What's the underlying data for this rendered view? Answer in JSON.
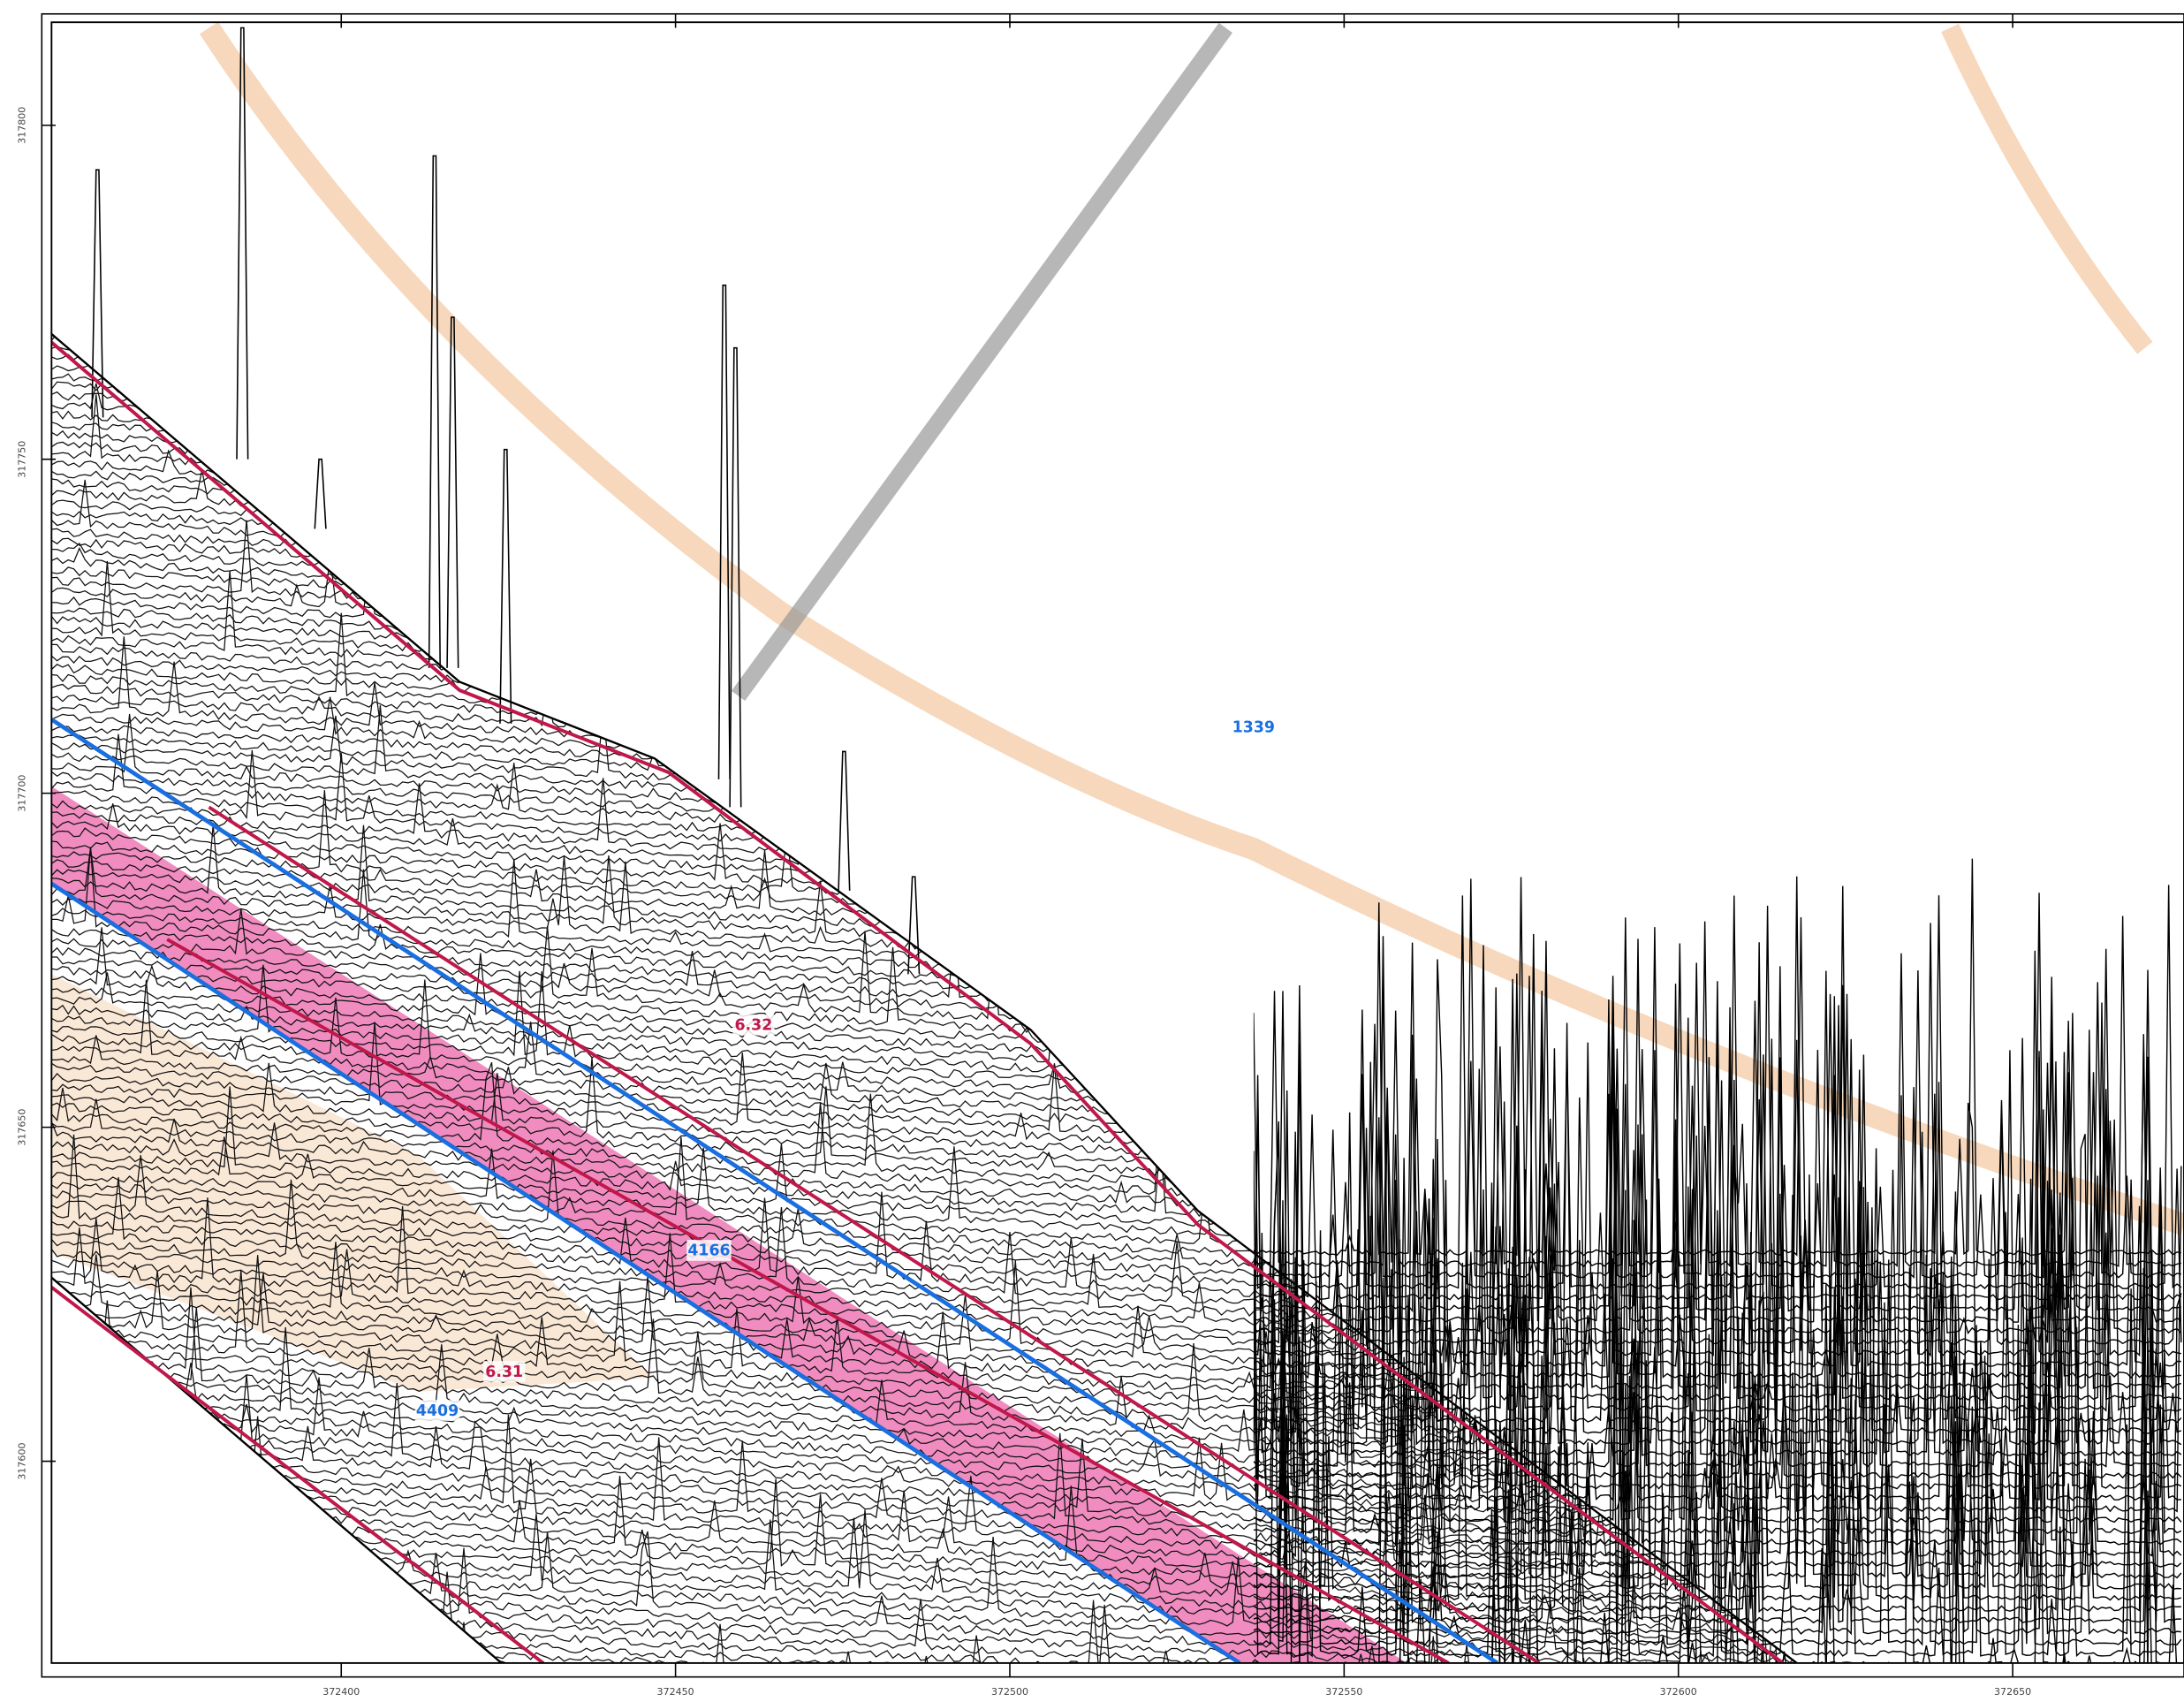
{
  "map": {
    "x_ticks": [
      "372400",
      "372450",
      "372500",
      "372550",
      "372600",
      "372650"
    ],
    "y_ticks": [
      "317800",
      "317750",
      "317700",
      "317650",
      "317600"
    ],
    "labels": {
      "a": "1339",
      "b": "6.32",
      "c": "4166",
      "d": "6.31",
      "e": "4409"
    }
  }
}
